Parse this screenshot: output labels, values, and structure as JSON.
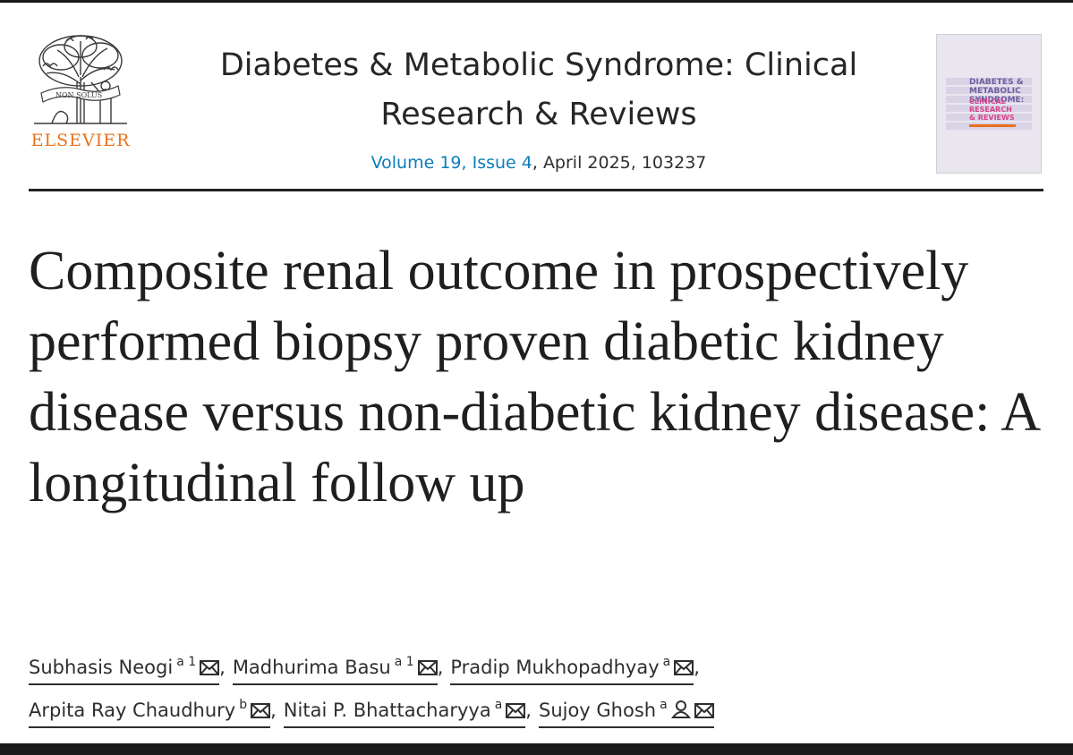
{
  "publisher": {
    "name": "ELSEVIER",
    "logo_motto": "NON SOLUS"
  },
  "journal": {
    "title": "Diabetes & Metabolic Syndrome: Clinical Research & Reviews",
    "volume_issue_link": "Volume 19, Issue 4",
    "issue_details": ", April 2025, 103237",
    "cover": {
      "title_line1": "DIABETES &",
      "title_line2": "METABOLIC",
      "title_line3": "SYNDROME:",
      "subtitle_line1": "CLINICAL",
      "subtitle_line2": "RESEARCH",
      "subtitle_line3": "& REVIEWS"
    }
  },
  "article": {
    "title": "Composite renal outcome in prospectively performed biopsy proven diabetic kidney disease versus non-diabetic kidney disease: A longitudinal follow up"
  },
  "authors": [
    {
      "name": "Subhasis Neogi",
      "affil": "a 1",
      "corresponding": false,
      "sep": ","
    },
    {
      "name": "Madhurima Basu",
      "affil": "a 1",
      "corresponding": false,
      "sep": ","
    },
    {
      "name": "Pradip Mukhopadhyay",
      "affil": "a",
      "corresponding": false,
      "sep": ","
    },
    {
      "name": "Arpita Ray Chaudhury",
      "affil": "b",
      "corresponding": false,
      "sep": ","
    },
    {
      "name": "Nitai P. Bhattacharyya",
      "affil": "a",
      "corresponding": false,
      "sep": ","
    },
    {
      "name": "Sujoy Ghosh",
      "affil": "a",
      "corresponding": true,
      "sep": ""
    }
  ],
  "icons": {
    "email": "envelope-icon",
    "corresponding": "person-icon"
  },
  "colors": {
    "link": "#0c7dbb",
    "elsevier_orange": "#e9711c",
    "text": "#1f1f1f"
  }
}
